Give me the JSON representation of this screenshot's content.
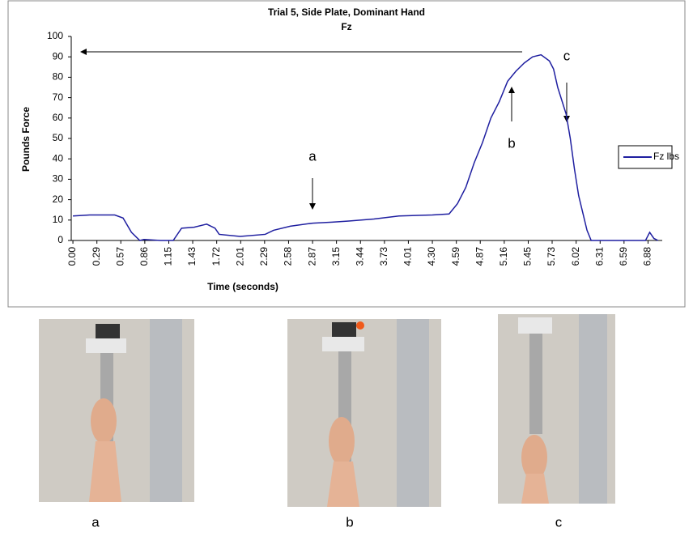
{
  "chart_data": {
    "type": "line",
    "title": "Trial 5, Side Plate, Dominant Hand",
    "subtitle": "Fz",
    "x_label": "Time (seconds)",
    "y_label": "Pounds Force",
    "x": [
      0,
      0.2,
      0.5,
      0.6,
      0.7,
      0.8,
      0.85,
      1.05,
      1.2,
      1.3,
      1.45,
      1.6,
      1.7,
      1.75,
      2.0,
      2.3,
      2.4,
      2.6,
      2.87,
      3.1,
      3.3,
      3.6,
      3.9,
      4.3,
      4.5,
      4.6,
      4.7,
      4.8,
      4.9,
      5.0,
      5.1,
      5.2,
      5.3,
      5.4,
      5.5,
      5.6,
      5.7,
      5.75,
      5.8,
      5.9,
      5.95,
      6.0,
      6.05,
      6.15,
      6.2,
      6.5,
      6.85,
      6.9,
      6.95,
      7.0
    ],
    "series": [
      {
        "name": "Fz lbs",
        "color": "#1f1fa0",
        "values": [
          12,
          12.5,
          12.5,
          11,
          4,
          0,
          0.5,
          0,
          0,
          6,
          6.5,
          8,
          6,
          3,
          2,
          3,
          5,
          7,
          8.5,
          9,
          9.5,
          10.5,
          12,
          12.5,
          13,
          18,
          26,
          38,
          48,
          60,
          68,
          78,
          83,
          87,
          90,
          91,
          88,
          84,
          75,
          62,
          50,
          35,
          22,
          5,
          0,
          0,
          0,
          4,
          1,
          0
        ]
      }
    ],
    "xlim": [
      -0.02,
      7.05
    ],
    "xticks": [
      {
        "value": 0,
        "label": "0.00"
      },
      {
        "value": 0.287,
        "label": "0.29"
      },
      {
        "value": 0.573,
        "label": "0.57"
      },
      {
        "value": 0.86,
        "label": "0.86"
      },
      {
        "value": 1.147,
        "label": "1.15"
      },
      {
        "value": 1.433,
        "label": "1.43"
      },
      {
        "value": 1.72,
        "label": "1.72"
      },
      {
        "value": 2.007,
        "label": "2.01"
      },
      {
        "value": 2.293,
        "label": "2.29"
      },
      {
        "value": 2.58,
        "label": "2.58"
      },
      {
        "value": 2.867,
        "label": "2.87"
      },
      {
        "value": 3.153,
        "label": "3.15"
      },
      {
        "value": 3.44,
        "label": "3.44"
      },
      {
        "value": 3.727,
        "label": "3.73"
      },
      {
        "value": 4.013,
        "label": "4.01"
      },
      {
        "value": 4.3,
        "label": "4.30"
      },
      {
        "value": 4.587,
        "label": "4.59"
      },
      {
        "value": 4.873,
        "label": "4.87"
      },
      {
        "value": 5.16,
        "label": "5.16"
      },
      {
        "value": 5.447,
        "label": "5.45"
      },
      {
        "value": 5.733,
        "label": "5.73"
      },
      {
        "value": 6.02,
        "label": "6.02"
      },
      {
        "value": 6.307,
        "label": "6.31"
      },
      {
        "value": 6.593,
        "label": "6.59"
      },
      {
        "value": 6.88,
        "label": "6.88"
      }
    ],
    "ylim": [
      0,
      100
    ],
    "yticks": [
      0,
      10,
      20,
      30,
      40,
      50,
      60,
      70,
      80,
      90,
      100
    ],
    "grid": false,
    "annotations": [
      "a",
      "b",
      "c"
    ]
  },
  "photos": [
    {
      "caption": "a"
    },
    {
      "caption": "b"
    },
    {
      "caption": "c"
    }
  ]
}
